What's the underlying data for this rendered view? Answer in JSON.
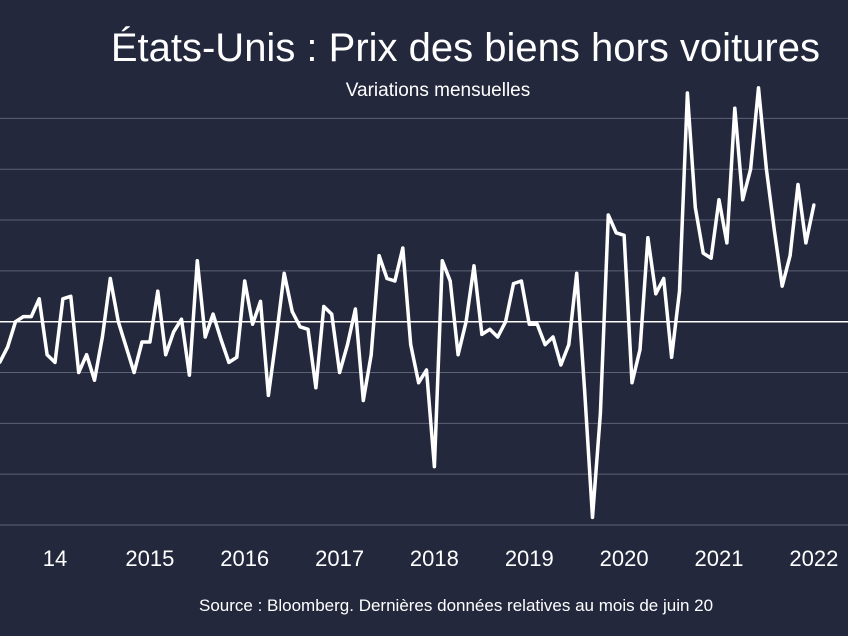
{
  "title": "États-Unis : Prix des biens hors voitures",
  "subtitle": "Variations mensuelles",
  "source": "Source : Bloomberg. Dernières données relatives au mois de juin 20",
  "colors": {
    "background": "#23283d",
    "line": "#ffffff",
    "grid": "#5d6275",
    "zero_line": "#ffffff"
  },
  "chart_data": {
    "type": "line",
    "title": "États-Unis : Prix des biens hors voitures",
    "subtitle": "Variations mensuelles",
    "xlabel": "",
    "ylabel": "",
    "x_tick_labels": [
      "14",
      "2015",
      "2016",
      "2017",
      "2018",
      "2019",
      "2020",
      "2021",
      "2022"
    ],
    "x_range": [
      2013.92,
      2022.86
    ],
    "ylim": [
      -4,
      4.5
    ],
    "y_grid_step": 1,
    "grid": true,
    "legend": "none",
    "series": [
      {
        "name": "",
        "x_start": "2013-12",
        "frequency": "monthly",
        "values": [
          -0.8,
          -0.5,
          0.0,
          0.1,
          0.1,
          0.45,
          -0.65,
          -0.8,
          0.45,
          0.5,
          -1.0,
          -0.65,
          -1.15,
          -0.3,
          0.85,
          0.0,
          -0.5,
          -1.0,
          -0.4,
          -0.4,
          0.6,
          -0.65,
          -0.2,
          0.05,
          -1.05,
          1.2,
          -0.3,
          0.15,
          -0.35,
          -0.8,
          -0.7,
          0.8,
          -0.05,
          0.4,
          -1.45,
          -0.3,
          0.95,
          0.2,
          -0.1,
          -0.15,
          -1.3,
          0.3,
          0.15,
          -1.0,
          -0.45,
          0.25,
          -1.55,
          -0.65,
          1.3,
          0.85,
          0.8,
          1.45,
          -0.45,
          -1.2,
          -0.95,
          -2.85,
          1.2,
          0.8,
          -0.65,
          0.0,
          1.1,
          -0.25,
          -0.15,
          -0.3,
          0.0,
          0.75,
          0.8,
          -0.05,
          -0.05,
          -0.45,
          -0.3,
          -0.85,
          -0.45,
          0.95,
          -1.35,
          -3.85,
          -1.8,
          2.1,
          1.75,
          1.7,
          -1.2,
          -0.55,
          1.65,
          0.55,
          0.85,
          -0.7,
          0.6,
          4.5,
          2.25,
          1.35,
          1.25,
          2.4,
          1.55,
          4.2,
          2.4,
          3.0,
          4.6,
          3.0,
          1.8,
          0.7,
          1.3,
          2.7,
          1.55,
          2.3
        ]
      }
    ]
  }
}
